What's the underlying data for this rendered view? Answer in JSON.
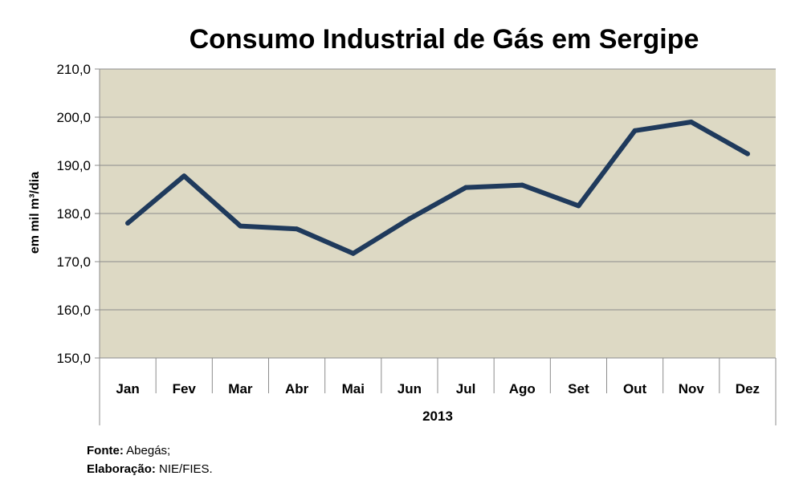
{
  "chart_data": {
    "type": "line",
    "title": "Consumo Industrial de Gás em Sergipe",
    "ylabel": "em mil m³/dia",
    "xgroup_label": "2013",
    "categories": [
      "Jan",
      "Fev",
      "Mar",
      "Abr",
      "Mai",
      "Jun",
      "Jul",
      "Ago",
      "Set",
      "Out",
      "Nov",
      "Dez"
    ],
    "series": [
      {
        "name": "Consumo Industrial",
        "values": [
          178.0,
          187.8,
          177.4,
          176.8,
          171.7,
          178.9,
          185.4,
          185.9,
          181.6,
          197.2,
          199.0,
          192.4
        ]
      }
    ],
    "ylim": [
      150,
      210
    ],
    "yticks": [
      150,
      160,
      170,
      180,
      190,
      200,
      210
    ],
    "ytick_labels": [
      "150,0",
      "160,0",
      "170,0",
      "180,0",
      "190,0",
      "200,0",
      "210,0"
    ],
    "grid": true,
    "colors": {
      "line": "#1f3a5c",
      "plot_bg": "#ddd9c4",
      "grid": "#8c8c8c"
    }
  },
  "source": {
    "label1": "Fonte:",
    "text1": "Abegás;",
    "label2": "Elaboração:",
    "text2": "NIE/FIES."
  }
}
